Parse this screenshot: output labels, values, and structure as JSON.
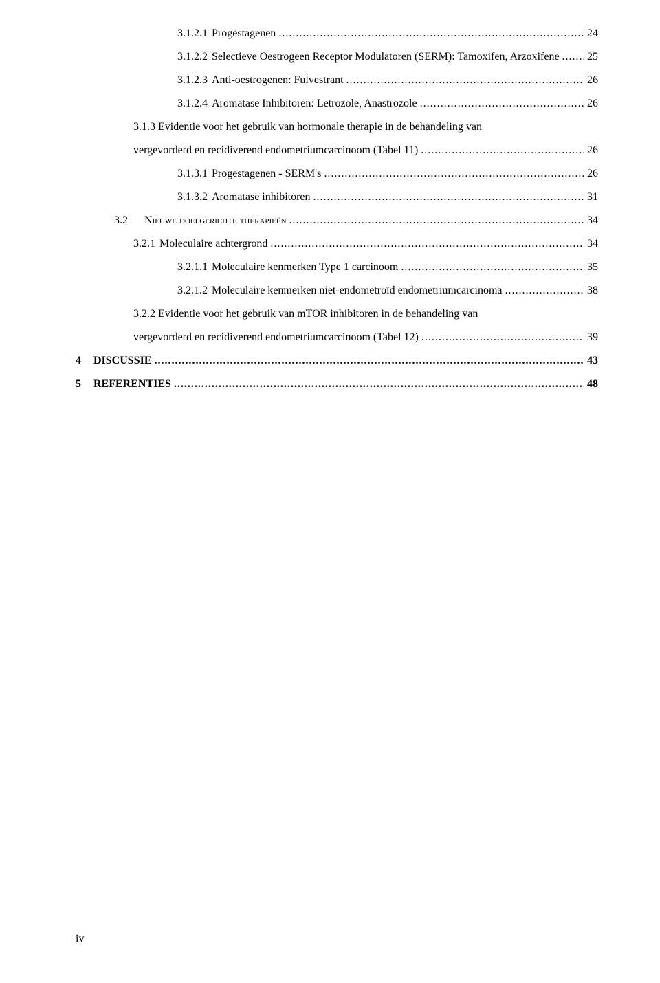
{
  "toc": [
    {
      "indent": 5,
      "number": "3.1.2.1",
      "title": "Progestagenen",
      "page": "24",
      "bold": false,
      "smallcaps": false
    },
    {
      "indent": 5,
      "number": "3.1.2.2",
      "title": "Selectieve Oestrogeen Receptor Modulatoren (SERM): Tamoxifen, Arzoxifene",
      "page": "25",
      "bold": false,
      "smallcaps": false
    },
    {
      "indent": 5,
      "number": "3.1.2.3",
      "title": "Anti-oestrogenen: Fulvestrant",
      "page": "26",
      "bold": false,
      "smallcaps": false
    },
    {
      "indent": 5,
      "number": "3.1.2.4",
      "title": "Aromatase Inhibitoren: Letrozole, Anastrozole",
      "page": "26",
      "bold": false,
      "smallcaps": false
    },
    {
      "indent": 3,
      "number": "3.1.3",
      "title": "Evidentie voor het gebruik van hormonale therapie in de behandeling van vergevorderd en recidiverend endometriumcarcinoom (Tabel 11)",
      "page": "26",
      "bold": false,
      "smallcaps": false,
      "multiline": true
    },
    {
      "indent": 5,
      "number": "3.1.3.1",
      "title": "Progestagenen  - SERM's",
      "page": "26",
      "bold": false,
      "smallcaps": false
    },
    {
      "indent": 5,
      "number": "3.1.3.2",
      "title": "Aromatase inhibitoren",
      "page": "31",
      "bold": false,
      "smallcaps": false
    },
    {
      "indent": 2,
      "number": "3.2",
      "title": "Nieuwe doelgerichte therapieën",
      "page": "34",
      "bold": false,
      "smallcaps": true
    },
    {
      "indent": 3,
      "number": "3.2.1",
      "title": "Moleculaire achtergrond",
      "page": "34",
      "bold": false,
      "smallcaps": false
    },
    {
      "indent": 5,
      "number": "3.2.1.1",
      "title": "Moleculaire kenmerken Type 1 carcinoom",
      "page": "35",
      "bold": false,
      "smallcaps": false
    },
    {
      "indent": 5,
      "number": "3.2.1.2",
      "title": "Moleculaire kenmerken niet-endometroïd endometriumcarcinoma",
      "page": "38",
      "bold": false,
      "smallcaps": false
    },
    {
      "indent": 3,
      "number": "3.2.2",
      "title": "Evidentie voor het gebruik van mTOR inhibitoren in de behandeling van vergevorderd en recidiverend endometriumcarcinoom (Tabel 12)",
      "page": "39",
      "bold": false,
      "smallcaps": false,
      "multiline": true
    },
    {
      "indent": 0,
      "number": "4",
      "title": "DISCUSSIE",
      "page": "43",
      "bold": true,
      "smallcaps": false
    },
    {
      "indent": 0,
      "number": "5",
      "title": "REFERENTIES",
      "page": "48",
      "bold": true,
      "smallcaps": false
    }
  ],
  "footer": "iv",
  "dots": "................................................................................................................................................................................................................"
}
